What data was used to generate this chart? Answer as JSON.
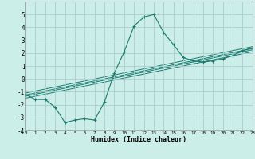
{
  "title": "",
  "xlabel": "Humidex (Indice chaleur)",
  "background_color": "#cceee8",
  "grid_color": "#aacccc",
  "line_color": "#1a7a6e",
  "xlim": [
    0,
    23
  ],
  "ylim": [
    -4,
    6
  ],
  "xticks": [
    0,
    1,
    2,
    3,
    4,
    5,
    6,
    7,
    8,
    9,
    10,
    11,
    12,
    13,
    14,
    15,
    16,
    17,
    18,
    19,
    20,
    21,
    22,
    23
  ],
  "yticks": [
    -4,
    -3,
    -2,
    -1,
    0,
    1,
    2,
    3,
    4,
    5
  ],
  "main_x": [
    0,
    1,
    2,
    3,
    4,
    5,
    6,
    7,
    8,
    9,
    10,
    11,
    12,
    13,
    14,
    15,
    16,
    17,
    18,
    19,
    20,
    21,
    22,
    23
  ],
  "main_y": [
    -1.2,
    -1.6,
    -1.6,
    -2.2,
    -3.4,
    -3.2,
    -3.1,
    -3.2,
    -1.8,
    0.45,
    2.1,
    4.1,
    4.8,
    5.0,
    3.6,
    2.65,
    1.65,
    1.4,
    1.3,
    1.4,
    1.55,
    1.8,
    2.2,
    2.4
  ],
  "line1_x": [
    0,
    23
  ],
  "line1_y": [
    -1.25,
    2.35
  ],
  "line2_x": [
    0,
    23
  ],
  "line2_y": [
    -1.1,
    2.5
  ],
  "line3_x": [
    0,
    23
  ],
  "line3_y": [
    -1.35,
    2.25
  ],
  "line4_x": [
    0,
    23
  ],
  "line4_y": [
    -1.5,
    2.1
  ]
}
